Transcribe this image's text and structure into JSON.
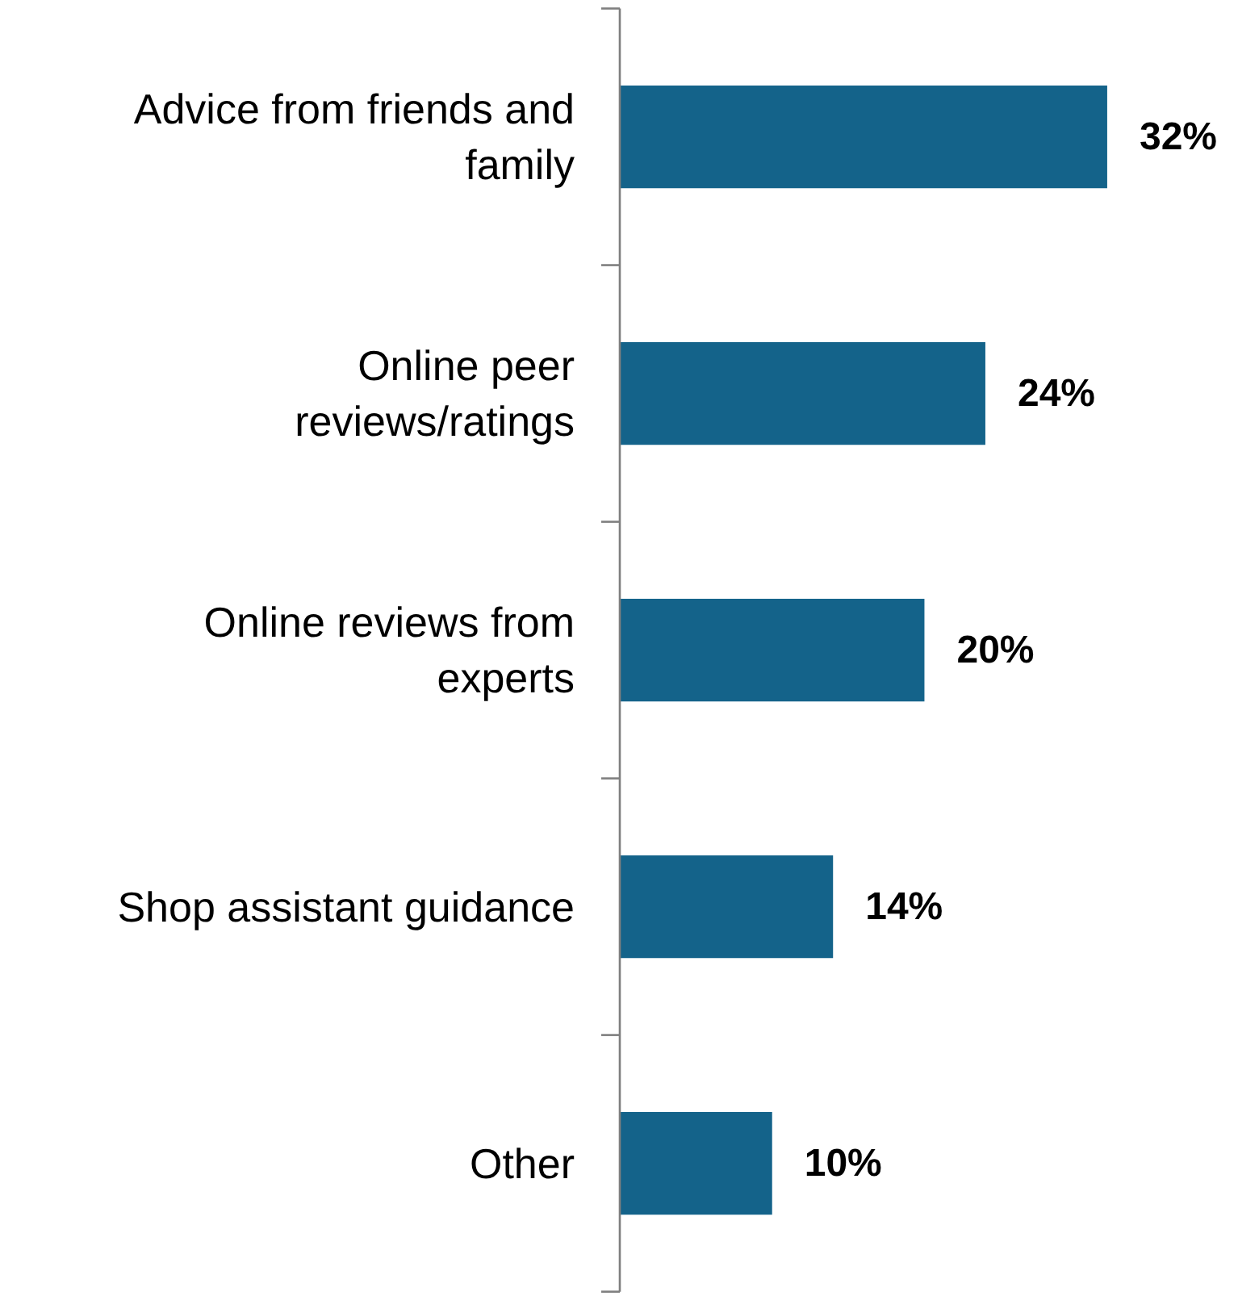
{
  "chart_data": {
    "type": "bar",
    "orientation": "horizontal",
    "categories": [
      "Advice from friends and family",
      "Online peer reviews/ratings",
      "Online reviews from experts",
      "Shop assistant guidance",
      "Other"
    ],
    "values": [
      32,
      24,
      20,
      14,
      10
    ],
    "color": "#14638a",
    "value_labels": [
      "32%",
      "24%",
      "20%",
      "14%",
      "10%"
    ]
  }
}
